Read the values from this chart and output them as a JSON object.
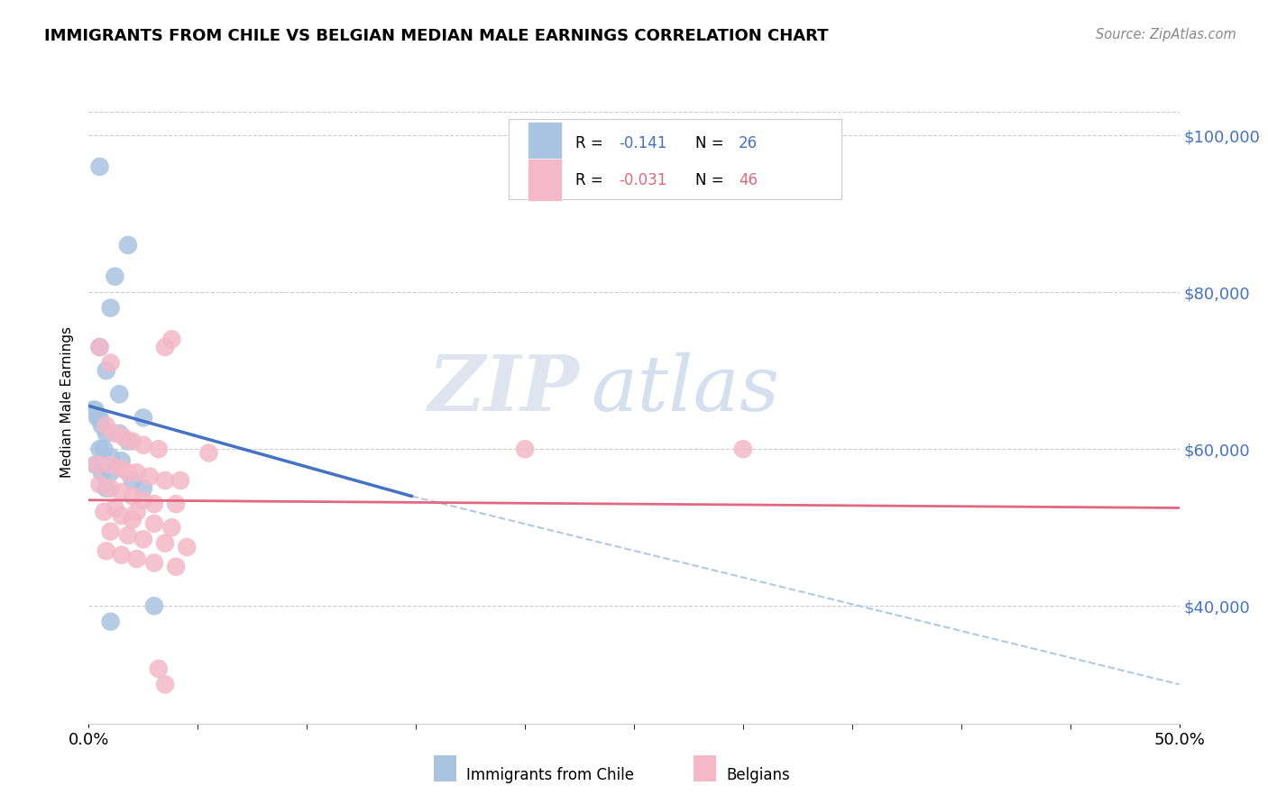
{
  "title": "IMMIGRANTS FROM CHILE VS BELGIAN MEDIAN MALE EARNINGS CORRELATION CHART",
  "source": "Source: ZipAtlas.com",
  "ylabel": "Median Male Earnings",
  "yticks": [
    40000,
    60000,
    80000,
    100000
  ],
  "ytick_labels": [
    "$40,000",
    "$60,000",
    "$80,000",
    "$100,000"
  ],
  "xlim": [
    0.0,
    0.5
  ],
  "ylim": [
    25000,
    107000
  ],
  "legend_labels": [
    "Immigrants from Chile",
    "Belgians"
  ],
  "watermark": "ZIPatlas",
  "blue_color": "#a8c4e0",
  "pink_color": "#f4b8c8",
  "blue_line_color": "#4472c4",
  "pink_line_color": "#e06880",
  "background_color": "#ffffff",
  "grid_color": "#cccccc",
  "blue_scatter": [
    [
      0.005,
      96000
    ],
    [
      0.018,
      86000
    ],
    [
      0.012,
      82000
    ],
    [
      0.01,
      78000
    ],
    [
      0.005,
      73000
    ],
    [
      0.008,
      70000
    ],
    [
      0.014,
      67000
    ],
    [
      0.002,
      65000
    ],
    [
      0.004,
      64000
    ],
    [
      0.025,
      64000
    ],
    [
      0.006,
      63000
    ],
    [
      0.008,
      62000
    ],
    [
      0.014,
      62000
    ],
    [
      0.003,
      65000
    ],
    [
      0.005,
      64000
    ],
    [
      0.018,
      61000
    ],
    [
      0.005,
      60000
    ],
    [
      0.007,
      60000
    ],
    [
      0.01,
      59000
    ],
    [
      0.015,
      58500
    ],
    [
      0.003,
      58000
    ],
    [
      0.006,
      57000
    ],
    [
      0.01,
      57000
    ],
    [
      0.02,
      56000
    ],
    [
      0.008,
      55000
    ],
    [
      0.025,
      55000
    ],
    [
      0.01,
      38000
    ],
    [
      0.03,
      40000
    ]
  ],
  "pink_scatter": [
    [
      0.005,
      73000
    ],
    [
      0.01,
      71000
    ],
    [
      0.035,
      73000
    ],
    [
      0.038,
      74000
    ],
    [
      0.3,
      60000
    ],
    [
      0.2,
      60000
    ],
    [
      0.008,
      63000
    ],
    [
      0.012,
      62000
    ],
    [
      0.016,
      61500
    ],
    [
      0.02,
      61000
    ],
    [
      0.025,
      60500
    ],
    [
      0.032,
      60000
    ],
    [
      0.055,
      59500
    ],
    [
      0.004,
      58000
    ],
    [
      0.01,
      58000
    ],
    [
      0.015,
      57500
    ],
    [
      0.018,
      57000
    ],
    [
      0.022,
      57000
    ],
    [
      0.028,
      56500
    ],
    [
      0.035,
      56000
    ],
    [
      0.042,
      56000
    ],
    [
      0.005,
      55500
    ],
    [
      0.01,
      55000
    ],
    [
      0.015,
      54500
    ],
    [
      0.02,
      54000
    ],
    [
      0.025,
      53500
    ],
    [
      0.03,
      53000
    ],
    [
      0.04,
      53000
    ],
    [
      0.007,
      52000
    ],
    [
      0.015,
      51500
    ],
    [
      0.02,
      51000
    ],
    [
      0.03,
      50500
    ],
    [
      0.038,
      50000
    ],
    [
      0.01,
      49500
    ],
    [
      0.018,
      49000
    ],
    [
      0.025,
      48500
    ],
    [
      0.035,
      48000
    ],
    [
      0.045,
      47500
    ],
    [
      0.008,
      47000
    ],
    [
      0.015,
      46500
    ],
    [
      0.022,
      46000
    ],
    [
      0.03,
      45500
    ],
    [
      0.04,
      45000
    ],
    [
      0.012,
      52500
    ],
    [
      0.022,
      52000
    ],
    [
      0.032,
      32000
    ],
    [
      0.035,
      30000
    ]
  ],
  "blue_line_x": [
    0.0,
    0.148
  ],
  "blue_line_y": [
    65500,
    54000
  ],
  "dashed_line_x": [
    0.148,
    0.5
  ],
  "dashed_line_y": [
    54000,
    30000
  ],
  "pink_line_x": [
    0.0,
    0.5
  ],
  "pink_line_y": [
    53500,
    52500
  ]
}
